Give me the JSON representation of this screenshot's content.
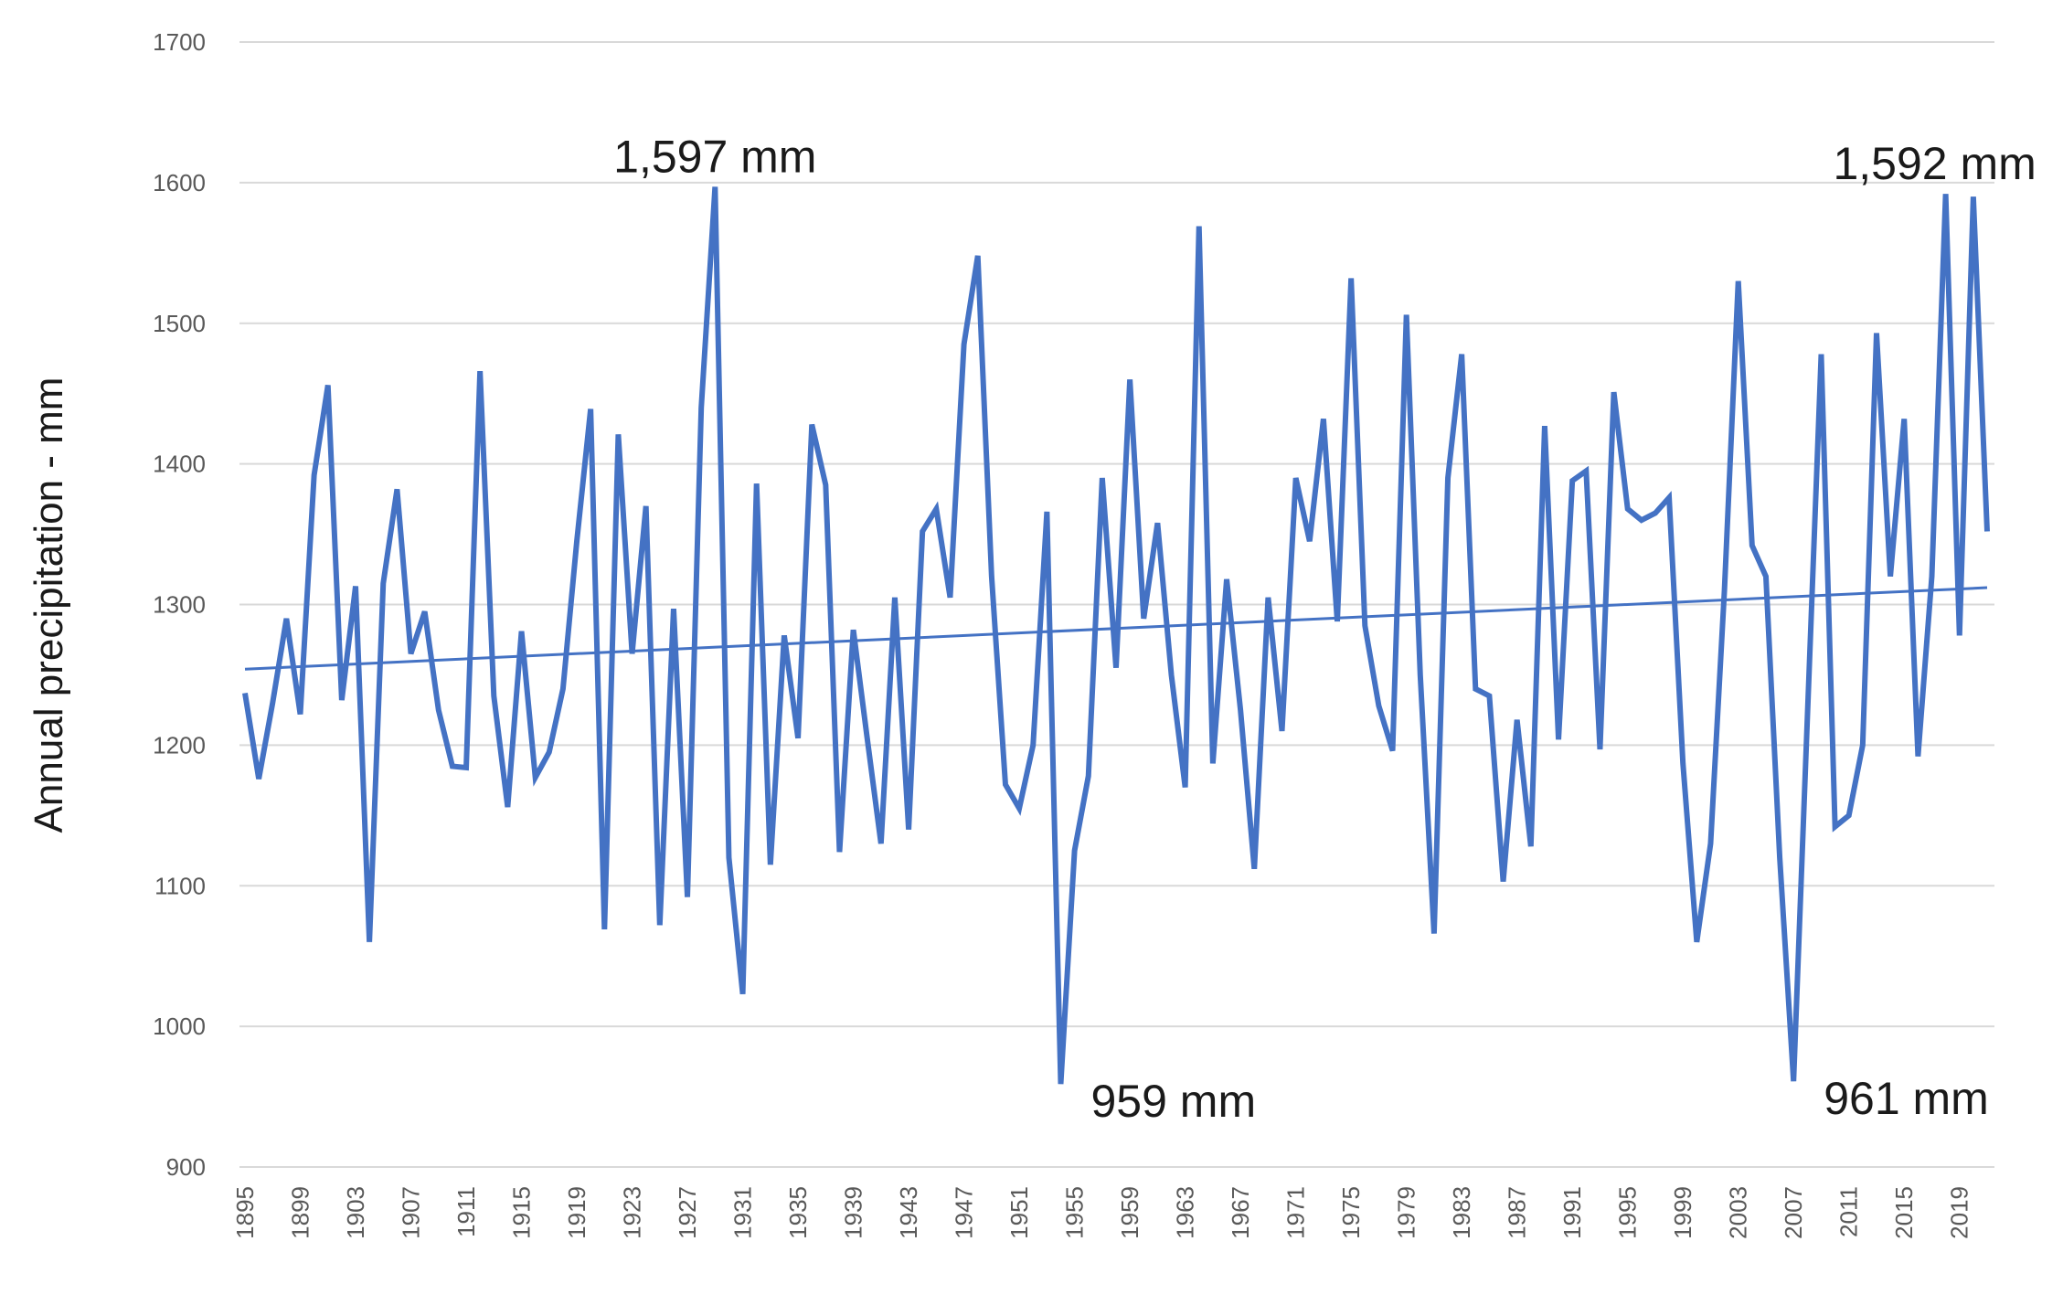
{
  "chart_data": {
    "type": "line",
    "title": "",
    "xlabel": "",
    "ylabel": "Annual precipitation - mm",
    "ylim": [
      900,
      1700
    ],
    "yticks": [
      900,
      1000,
      1100,
      1200,
      1300,
      1400,
      1500,
      1600,
      1700
    ],
    "xlim": [
      1895,
      2021
    ],
    "xtick_step": 4,
    "grid": true,
    "legend": "none",
    "series": [
      {
        "name": "Annual precipitation",
        "color": "#4472c4",
        "x_start": 1895,
        "values": [
          1237,
          1176,
          1230,
          1290,
          1222,
          1392,
          1456,
          1232,
          1313,
          1060,
          1315,
          1382,
          1265,
          1295,
          1225,
          1185,
          1184,
          1466,
          1235,
          1156,
          1281,
          1177,
          1195,
          1240,
          1345,
          1439,
          1069,
          1421,
          1265,
          1370,
          1072,
          1297,
          1092,
          1440,
          1597,
          1120,
          1023,
          1386,
          1115,
          1278,
          1205,
          1428,
          1385,
          1124,
          1282,
          1205,
          1130,
          1305,
          1140,
          1352,
          1368,
          1305,
          1485,
          1548,
          1320,
          1172,
          1155,
          1200,
          1366,
          959,
          1125,
          1178,
          1390,
          1255,
          1460,
          1290,
          1358,
          1250,
          1170,
          1569,
          1187,
          1318,
          1225,
          1112,
          1305,
          1210,
          1390,
          1345,
          1432,
          1288,
          1532,
          1285,
          1228,
          1196,
          1506,
          1250,
          1066,
          1390,
          1478,
          1240,
          1235,
          1103,
          1218,
          1128,
          1427,
          1204,
          1388,
          1395,
          1197,
          1451,
          1368,
          1360,
          1365,
          1376,
          1187,
          1060,
          1130,
          1310,
          1530,
          1342,
          1320,
          1120,
          961,
          1220,
          1478,
          1142,
          1150,
          1200,
          1493,
          1320,
          1432,
          1192,
          1320,
          1592,
          1278,
          1590,
          1352
        ]
      },
      {
        "name": "Linear trend",
        "color": "#4472c4",
        "type": "trendline",
        "x": [
          1895,
          2021
        ],
        "values": [
          1254,
          1312
        ]
      }
    ],
    "annotations": [
      {
        "text": "1,597 mm",
        "x": 1929,
        "y": 1597,
        "position": "above"
      },
      {
        "text": "1,592 mm",
        "x": 2018,
        "y": 1592,
        "position": "above"
      },
      {
        "text": "959 mm",
        "x": 1954,
        "y": 959,
        "position": "right"
      },
      {
        "text": "961 mm",
        "x": 2007,
        "y": 961,
        "position": "right"
      }
    ]
  }
}
